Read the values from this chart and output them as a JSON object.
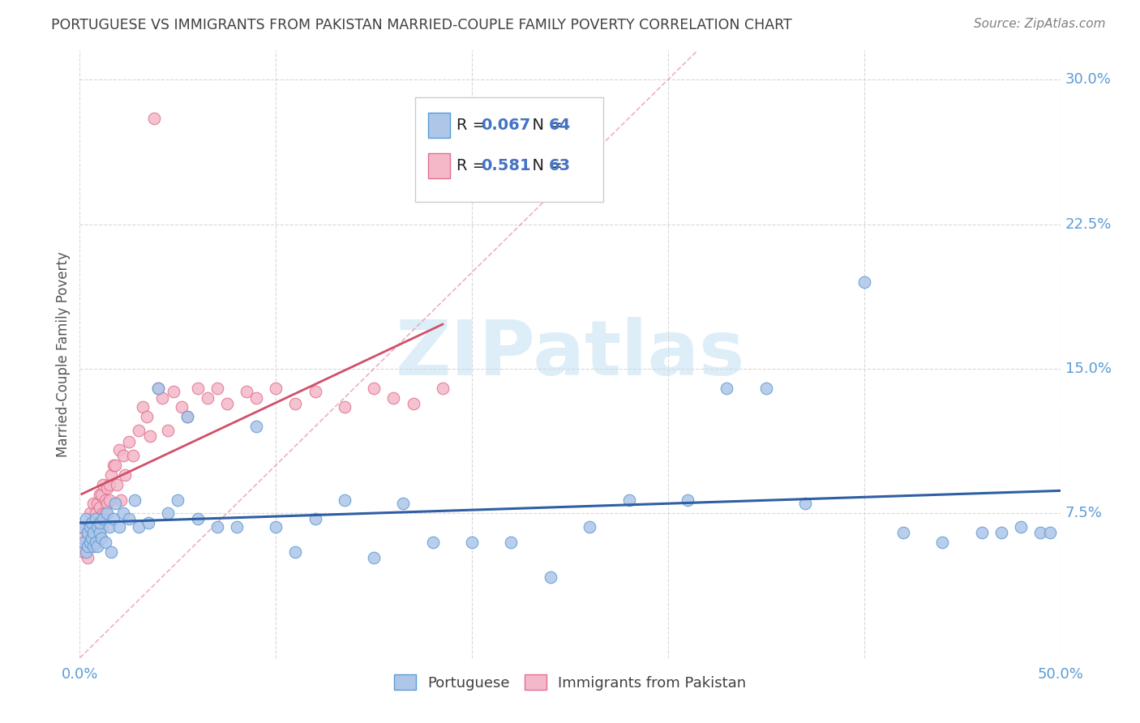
{
  "title": "PORTUGUESE VS IMMIGRANTS FROM PAKISTAN MARRIED-COUPLE FAMILY POVERTY CORRELATION CHART",
  "source": "Source: ZipAtlas.com",
  "ylabel": "Married-Couple Family Poverty",
  "xlim": [
    0.0,
    0.5
  ],
  "ylim": [
    0.0,
    0.315
  ],
  "ytick_positions": [
    0.0,
    0.075,
    0.15,
    0.225,
    0.3
  ],
  "ytick_labels": [
    "",
    "7.5%",
    "15.0%",
    "22.5%",
    "30.0%"
  ],
  "xtick_positions": [
    0.0,
    0.5
  ],
  "xtick_labels": [
    "0.0%",
    "50.0%"
  ],
  "watermark": "ZIPatlas",
  "series1_color": "#aec6e8",
  "series1_edge": "#5b9bd5",
  "series2_color": "#f4b8c8",
  "series2_edge": "#e07090",
  "trend1_color": "#2e5fa3",
  "trend2_color": "#d0506a",
  "diagonal_color": "#e8a0a8",
  "R1": 0.067,
  "N1": 64,
  "R2": 0.581,
  "N2": 63,
  "portuguese_x": [
    0.001,
    0.002,
    0.003,
    0.003,
    0.004,
    0.004,
    0.005,
    0.005,
    0.006,
    0.006,
    0.007,
    0.007,
    0.008,
    0.008,
    0.009,
    0.009,
    0.01,
    0.01,
    0.011,
    0.012,
    0.013,
    0.014,
    0.015,
    0.016,
    0.017,
    0.018,
    0.02,
    0.022,
    0.025,
    0.028,
    0.03,
    0.035,
    0.04,
    0.045,
    0.05,
    0.055,
    0.06,
    0.07,
    0.08,
    0.09,
    0.1,
    0.11,
    0.12,
    0.135,
    0.15,
    0.165,
    0.18,
    0.2,
    0.22,
    0.24,
    0.26,
    0.28,
    0.31,
    0.33,
    0.35,
    0.37,
    0.4,
    0.42,
    0.44,
    0.46,
    0.47,
    0.48,
    0.49,
    0.495
  ],
  "portuguese_y": [
    0.068,
    0.06,
    0.055,
    0.072,
    0.058,
    0.065,
    0.06,
    0.068,
    0.062,
    0.07,
    0.058,
    0.065,
    0.072,
    0.06,
    0.058,
    0.068,
    0.065,
    0.07,
    0.062,
    0.072,
    0.06,
    0.075,
    0.068,
    0.055,
    0.072,
    0.08,
    0.068,
    0.075,
    0.072,
    0.082,
    0.068,
    0.07,
    0.14,
    0.075,
    0.082,
    0.125,
    0.072,
    0.068,
    0.068,
    0.12,
    0.068,
    0.055,
    0.072,
    0.082,
    0.052,
    0.08,
    0.06,
    0.06,
    0.06,
    0.042,
    0.068,
    0.082,
    0.082,
    0.14,
    0.14,
    0.08,
    0.195,
    0.065,
    0.06,
    0.065,
    0.065,
    0.068,
    0.065,
    0.065
  ],
  "pakistan_x": [
    0.001,
    0.002,
    0.003,
    0.003,
    0.004,
    0.004,
    0.005,
    0.005,
    0.006,
    0.006,
    0.007,
    0.007,
    0.008,
    0.008,
    0.009,
    0.009,
    0.01,
    0.01,
    0.011,
    0.011,
    0.012,
    0.012,
    0.013,
    0.013,
    0.014,
    0.014,
    0.015,
    0.015,
    0.016,
    0.017,
    0.018,
    0.019,
    0.02,
    0.021,
    0.022,
    0.023,
    0.025,
    0.027,
    0.03,
    0.032,
    0.034,
    0.036,
    0.038,
    0.04,
    0.042,
    0.045,
    0.048,
    0.052,
    0.055,
    0.06,
    0.065,
    0.07,
    0.075,
    0.085,
    0.09,
    0.1,
    0.11,
    0.12,
    0.135,
    0.15,
    0.16,
    0.17,
    0.185
  ],
  "pakistan_y": [
    0.062,
    0.055,
    0.06,
    0.068,
    0.052,
    0.065,
    0.075,
    0.058,
    0.07,
    0.065,
    0.08,
    0.072,
    0.068,
    0.075,
    0.08,
    0.072,
    0.085,
    0.078,
    0.068,
    0.085,
    0.075,
    0.09,
    0.082,
    0.075,
    0.088,
    0.08,
    0.09,
    0.082,
    0.095,
    0.1,
    0.1,
    0.09,
    0.108,
    0.082,
    0.105,
    0.095,
    0.112,
    0.105,
    0.118,
    0.13,
    0.125,
    0.115,
    0.28,
    0.14,
    0.135,
    0.118,
    0.138,
    0.13,
    0.125,
    0.14,
    0.135,
    0.14,
    0.132,
    0.138,
    0.135,
    0.14,
    0.132,
    0.138,
    0.13,
    0.14,
    0.135,
    0.132,
    0.14
  ],
  "background_color": "#ffffff",
  "grid_color": "#d8d8d8",
  "axis_label_color": "#5b9bd5",
  "title_color": "#404040",
  "legend_R_color1": "#4472c4",
  "legend_R_color2": "#4472c4"
}
